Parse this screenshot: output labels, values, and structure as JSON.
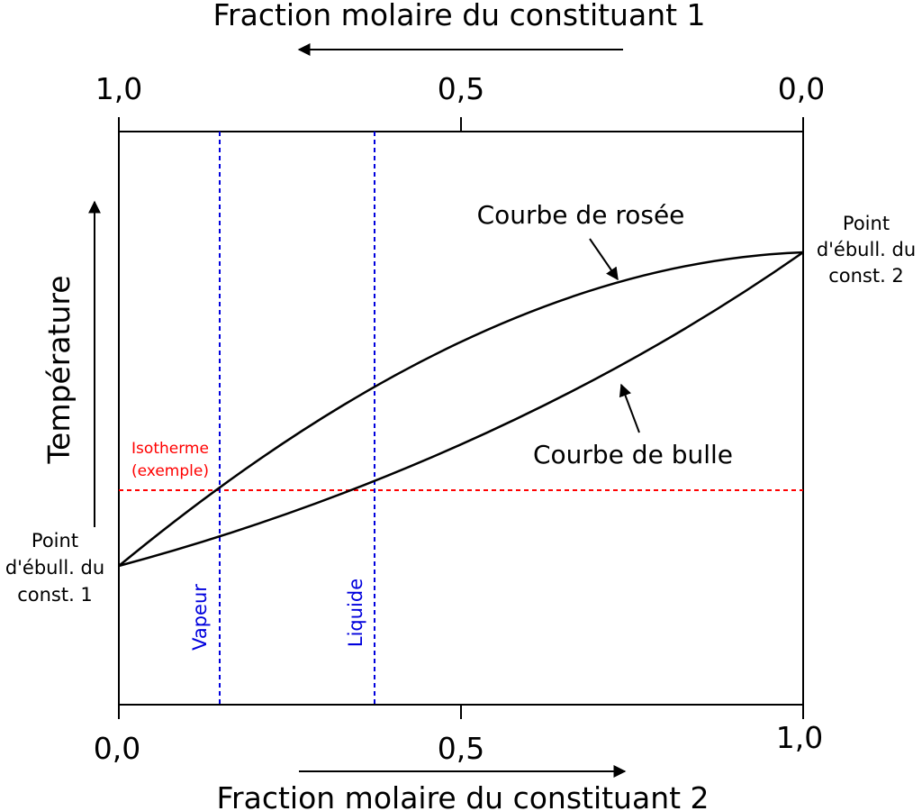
{
  "top_axis": {
    "title": "Fraction molaire du constituant 1",
    "ticks": [
      "1,0",
      "0,5",
      "0,0"
    ]
  },
  "bottom_axis": {
    "title": "Fraction molaire du constituant 2",
    "ticks": [
      "0,0",
      "0,5",
      "1,0"
    ]
  },
  "y_axis": {
    "title": "Température"
  },
  "labels": {
    "dew_curve": "Courbe de rosée",
    "bubble_curve": "Courbe de bulle",
    "boil_point_1": [
      "Point",
      "d'ébull. du",
      "const. 1"
    ],
    "boil_point_2": [
      "Point",
      "d'ébull. du",
      "const. 2"
    ],
    "isotherm": [
      "Isotherme",
      "(exemple)"
    ],
    "vapor": "Vapeur",
    "liquid": "Liquide"
  },
  "colors": {
    "curves": "#000000",
    "isotherm": "#ff0000",
    "composition_lines": "#0000dd"
  },
  "chart_data": {
    "type": "line",
    "x_domain": [
      0.0,
      1.0
    ],
    "series": [
      {
        "name": "Courbe de rosée",
        "points": [
          [
            0.0,
            0.0
          ],
          [
            0.15,
            0.23
          ],
          [
            0.37,
            0.47
          ],
          [
            0.73,
            0.73
          ],
          [
            1.0,
            0.85
          ]
        ]
      },
      {
        "name": "Courbe de bulle",
        "points": [
          [
            0.0,
            0.0
          ],
          [
            0.15,
            0.08
          ],
          [
            0.37,
            0.23
          ],
          [
            0.73,
            0.52
          ],
          [
            1.0,
            0.85
          ]
        ]
      }
    ],
    "isotherm_level": 0.23,
    "vapor_composition": 0.15,
    "liquid_composition": 0.37
  }
}
